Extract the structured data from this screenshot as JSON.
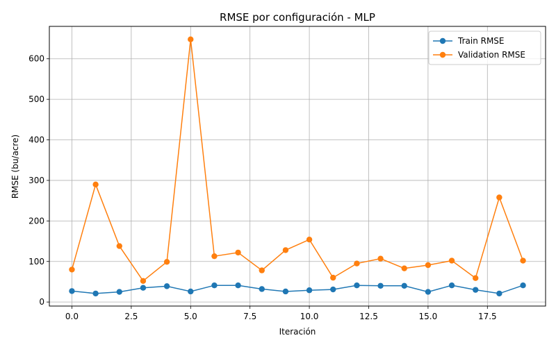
{
  "chart_data": {
    "type": "line",
    "title": "RMSE por configuración - MLP",
    "xlabel": "Iteración",
    "ylabel": "RMSE (bu/acre)",
    "xlim": [
      -0.95,
      19.95
    ],
    "ylim": [
      -10,
      680
    ],
    "xticks": [
      0.0,
      2.5,
      5.0,
      7.5,
      10.0,
      12.5,
      15.0,
      17.5
    ],
    "xtick_labels": [
      "0.0",
      "2.5",
      "5.0",
      "7.5",
      "10.0",
      "12.5",
      "15.0",
      "17.5"
    ],
    "yticks": [
      0,
      100,
      200,
      300,
      400,
      500,
      600
    ],
    "ytick_labels": [
      "0",
      "100",
      "200",
      "300",
      "400",
      "500",
      "600"
    ],
    "grid": true,
    "legend_position": "top-right",
    "x": [
      0,
      1,
      2,
      3,
      4,
      5,
      6,
      7,
      8,
      9,
      10,
      11,
      12,
      13,
      14,
      15,
      16,
      17,
      18,
      19
    ],
    "series": [
      {
        "name": "Train RMSE",
        "color": "#1f77b4",
        "marker": "circle",
        "values": [
          27,
          21,
          25,
          35,
          39,
          26,
          41,
          41,
          32,
          26,
          29,
          31,
          41,
          40,
          40,
          25,
          41,
          30,
          21,
          41
        ]
      },
      {
        "name": "Validation RMSE",
        "color": "#ff7f0e",
        "marker": "circle",
        "values": [
          80,
          290,
          138,
          52,
          99,
          648,
          113,
          122,
          78,
          128,
          154,
          60,
          95,
          107,
          83,
          91,
          102,
          59,
          258,
          102
        ]
      }
    ]
  }
}
